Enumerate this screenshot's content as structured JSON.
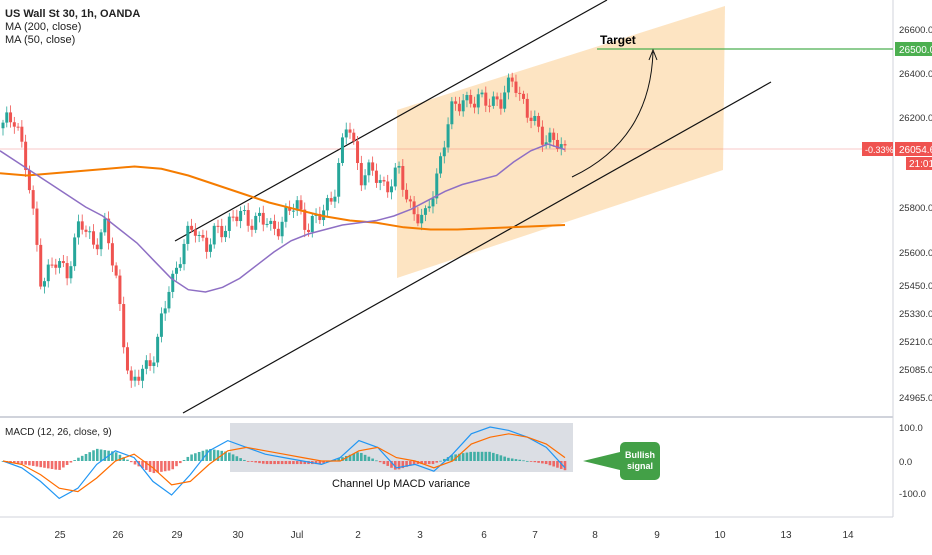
{
  "legend": {
    "symbol_title": "US Wall St 30, 1h, OANDA",
    "ma200": "MA (200, close)",
    "ma50": "MA (50, close)"
  },
  "price_axis": {
    "ticks": [
      "26600.0",
      "26400.0",
      "26200.0",
      "25800.0",
      "25600.0",
      "25450.0",
      "25330.0",
      "25210.0",
      "25085.0",
      "24965.0"
    ],
    "target_label": "26500.0",
    "last_price_label": "26054.6",
    "change_label": "-0.33%",
    "countdown_label": "21:01"
  },
  "macd_axis": {
    "ticks": [
      "100.0",
      "0.0",
      "-100.0"
    ]
  },
  "time_axis": {
    "ticks": [
      "25",
      "26",
      "29",
      "30",
      "Jul",
      "2",
      "3",
      "6",
      "7",
      "8",
      "9",
      "10",
      "13",
      "14"
    ]
  },
  "annotations": {
    "target": "Target",
    "macd_variance": "Channel Up MACD variance",
    "bullish_signal": "Bullish signal"
  },
  "macd_legend": "MACD (12, 26, close, 9)",
  "colors": {
    "bull": "#26a69a",
    "bear": "#ef5350",
    "ma200": "#f57c00",
    "ma50": "#8e6fc4",
    "target_line": "#4caf50",
    "bullish_badge": "#43a047",
    "channel_fill": "#fcd9a8",
    "macd_line": "#2196f3",
    "signal_line": "#ff6d00"
  },
  "chart_data": {
    "type": "candlestick",
    "symbol": "US Wall St 30",
    "interval": "1h",
    "ylim": [
      24950,
      26700
    ],
    "target": 26500.0,
    "last_price": 26054.6,
    "change_pct": -0.33,
    "close_path": [
      [
        "25",
        26150
      ],
      [
        "25",
        26220
      ],
      [
        "25",
        25900
      ],
      [
        "25",
        25480
      ],
      [
        "25",
        25540
      ],
      [
        "26",
        25520
      ],
      [
        "26",
        25720
      ],
      [
        "26",
        25650
      ],
      [
        "26",
        25700
      ],
      [
        "26",
        25440
      ],
      [
        "29",
        24980
      ],
      [
        "29",
        25100
      ],
      [
        "29",
        25160
      ],
      [
        "29",
        25450
      ],
      [
        "29",
        25600
      ],
      [
        "30",
        25720
      ],
      [
        "30",
        25620
      ],
      [
        "30",
        25700
      ],
      [
        "30",
        25760
      ],
      [
        "30",
        25740
      ],
      [
        "Jul",
        25760
      ],
      [
        "Jul",
        25690
      ],
      [
        "Jul",
        25760
      ],
      [
        "Jul",
        25800
      ],
      [
        "Jul",
        25720
      ],
      [
        "2",
        25760
      ],
      [
        "2",
        25900
      ],
      [
        "2",
        26180
      ],
      [
        "2",
        25950
      ],
      [
        "2",
        25940
      ],
      [
        "3",
        25900
      ],
      [
        "3",
        25940
      ],
      [
        "3",
        25800
      ],
      [
        "3",
        25720
      ],
      [
        "3",
        25960
      ],
      [
        "6",
        26200
      ],
      [
        "6",
        26300
      ],
      [
        "6",
        26250
      ],
      [
        "6",
        26300
      ],
      [
        "6",
        26250
      ],
      [
        "7",
        26400
      ],
      [
        "7",
        26200
      ],
      [
        "7",
        26150
      ],
      [
        "7",
        26080
      ],
      [
        "7",
        26055
      ]
    ],
    "ma50": [
      26050,
      26000,
      25950,
      25900,
      25850,
      25800,
      25760,
      25700,
      25640,
      25560,
      25480,
      25430,
      25420,
      25440,
      25480,
      25540,
      25600,
      25650,
      25680,
      25700,
      25720,
      25730,
      25740,
      25760,
      25790,
      25830,
      25870,
      25900,
      25920,
      25940,
      26000,
      26050,
      26080,
      26055
    ],
    "ma200": [
      25950,
      25940,
      25950,
      25960,
      25970,
      25980,
      25970,
      25940,
      25900,
      25860,
      25820,
      25790,
      25760,
      25740,
      25730,
      25710,
      25700,
      25700,
      25705,
      25710,
      25715,
      25720
    ],
    "macd": {
      "legend": "MACD (12, 26, close, 9)",
      "ylim": [
        -120,
        120
      ],
      "macd_line": [
        0,
        -20,
        -60,
        -110,
        -80,
        -10,
        30,
        10,
        -60,
        -100,
        -40,
        30,
        60,
        40,
        20,
        10,
        0,
        -10,
        10,
        60,
        40,
        -20,
        -10,
        -30,
        20,
        80,
        100,
        90,
        70,
        40,
        -20
      ],
      "signal_line": [
        0,
        -10,
        -40,
        -80,
        -90,
        -50,
        0,
        20,
        -20,
        -70,
        -60,
        -10,
        30,
        40,
        30,
        20,
        10,
        0,
        0,
        30,
        40,
        10,
        0,
        -20,
        0,
        50,
        70,
        80,
        70,
        50,
        10
      ]
    }
  }
}
